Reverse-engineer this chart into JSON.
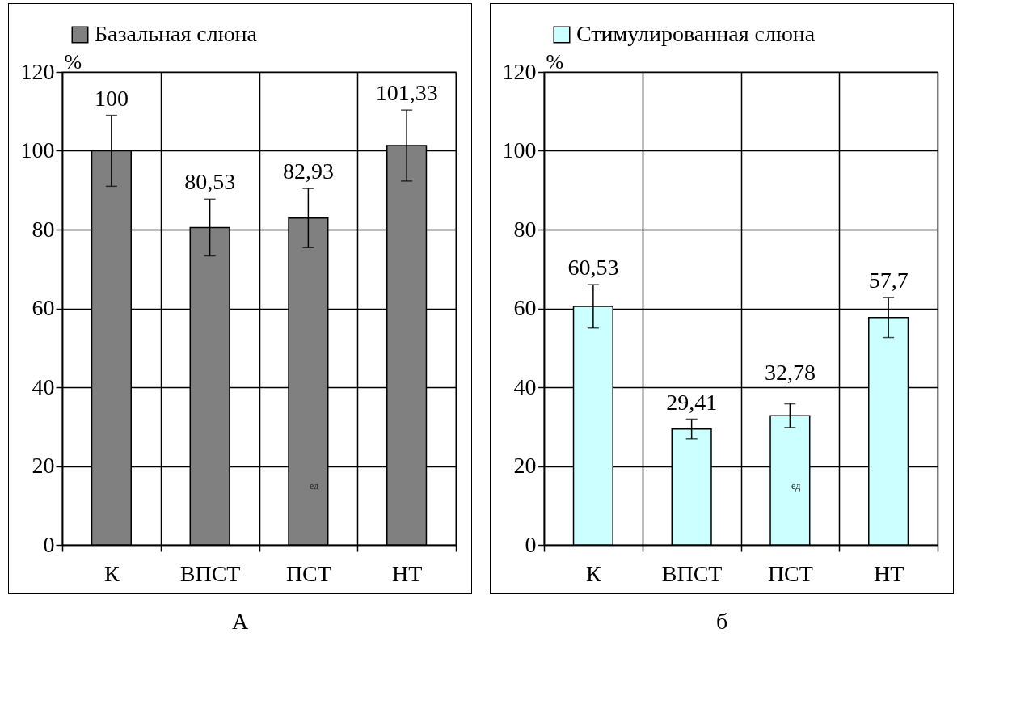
{
  "chart_data": [
    {
      "type": "bar",
      "categories": [
        "К",
        "ВПСТ",
        "ПСТ",
        "НТ"
      ],
      "ylabel": "%",
      "ylim": [
        0,
        120
      ],
      "yticks": [
        0,
        20,
        40,
        60,
        80,
        100,
        120
      ],
      "grid": true,
      "legend": "top",
      "series": [
        {
          "name": "Базальная слюна",
          "color": "#808080",
          "values": [
            100,
            80.53,
            82.93,
            101.33
          ],
          "errors": [
            9,
            7.2,
            7.5,
            9
          ],
          "value_labels": [
            "100",
            "80,53",
            "82,93",
            "101,33"
          ]
        }
      ],
      "annotations": [
        "ед",
        "А"
      ]
    },
    {
      "type": "bar",
      "categories": [
        "К",
        "ВПСТ",
        "ПСТ",
        "НТ"
      ],
      "ylabel": "%",
      "ylim": [
        0,
        120
      ],
      "yticks": [
        0,
        20,
        40,
        60,
        80,
        100,
        120
      ],
      "grid": true,
      "legend": "top",
      "series": [
        {
          "name": "Стимулированная слюна",
          "color": "#ccffff",
          "values": [
            60.53,
            29.41,
            32.78,
            57.7
          ],
          "errors": [
            5.5,
            2.5,
            3,
            5.1
          ],
          "value_labels": [
            "60,53",
            "29,41",
            "32,78",
            "57,7"
          ]
        }
      ],
      "annotations": [
        "ед",
        "б"
      ]
    }
  ]
}
